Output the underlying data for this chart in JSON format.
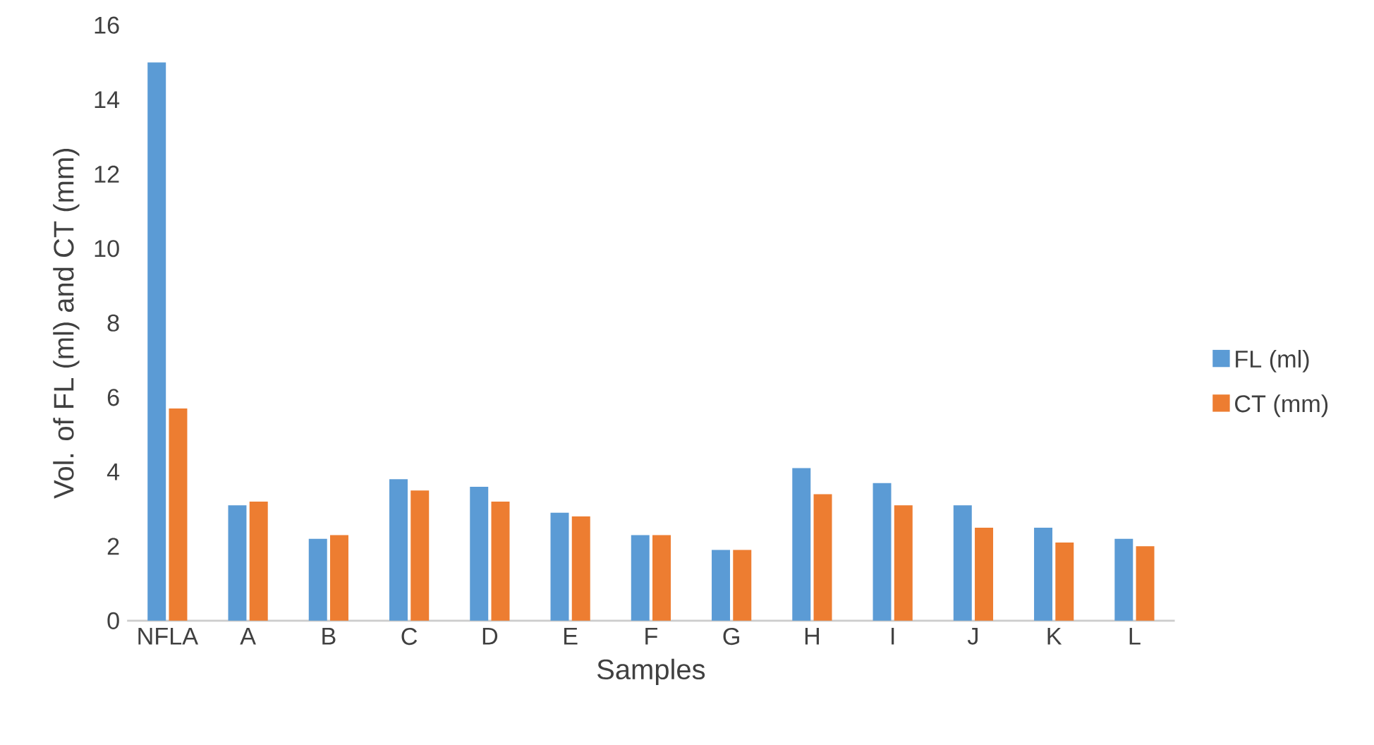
{
  "chart_data": {
    "type": "bar",
    "xlabel": "Samples",
    "ylabel": "Vol. of FL (ml) and CT (mm)",
    "categories": [
      "NFLA",
      "A",
      "B",
      "C",
      "D",
      "E",
      "F",
      "G",
      "H",
      "I",
      "J",
      "K",
      "L"
    ],
    "series": [
      {
        "name": "FL (ml)",
        "color": "#5b9bd5",
        "values": [
          15.0,
          3.1,
          2.2,
          3.8,
          3.6,
          2.9,
          2.3,
          1.9,
          4.1,
          3.7,
          3.1,
          2.5,
          2.2
        ]
      },
      {
        "name": "CT (mm)",
        "color": "#ed7d31",
        "values": [
          5.7,
          3.2,
          2.3,
          3.5,
          3.2,
          2.8,
          2.3,
          1.9,
          3.4,
          3.1,
          2.5,
          2.1,
          2.0
        ]
      }
    ],
    "ylim": [
      0,
      16
    ],
    "yticks": [
      0,
      2,
      4,
      6,
      8,
      10,
      12,
      14,
      16
    ],
    "grid": false,
    "legend": "right"
  }
}
